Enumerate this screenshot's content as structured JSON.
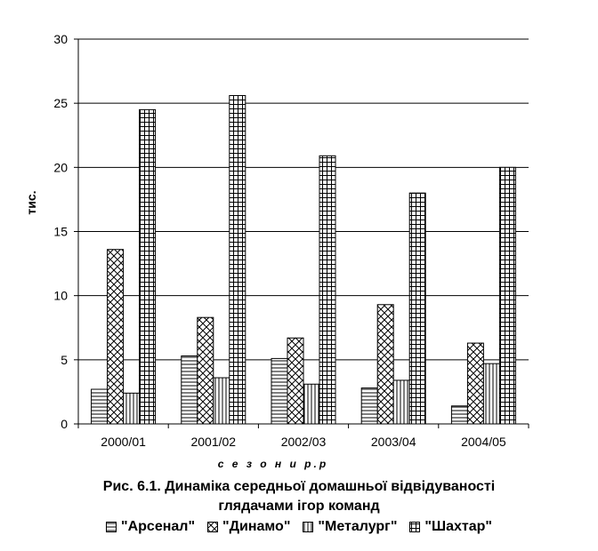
{
  "chart_data": {
    "type": "bar",
    "categories": [
      "2000/01",
      "2001/02",
      "2002/03",
      "2003/04",
      "2004/05"
    ],
    "series": [
      {
        "name": "\"Арсенал\"",
        "pattern": "horizontal-lines",
        "values": [
          2.7,
          5.3,
          5.1,
          2.8,
          1.4
        ]
      },
      {
        "name": "\"Динамо\"",
        "pattern": "cross-hatch",
        "values": [
          13.6,
          8.3,
          6.7,
          9.3,
          6.3
        ]
      },
      {
        "name": "\"Металург\"",
        "pattern": "vertical-lines",
        "values": [
          2.4,
          3.6,
          3.1,
          3.4,
          4.7
        ]
      },
      {
        "name": "\"Шахтар\"",
        "pattern": "grid",
        "values": [
          24.5,
          25.6,
          20.9,
          18.0,
          20.0
        ]
      }
    ],
    "yticks": [
      0,
      5,
      10,
      15,
      20,
      25,
      30
    ],
    "ylim": [
      0,
      30
    ],
    "ylabel": "тис.",
    "xlabel": "с е з о н и  р.р",
    "grid": true,
    "legend_position": "bottom"
  },
  "caption": {
    "line1": "Рис. 6.1. Динаміка середньої домашньої відвідуваності",
    "line2": "глядачами ігор команд"
  }
}
